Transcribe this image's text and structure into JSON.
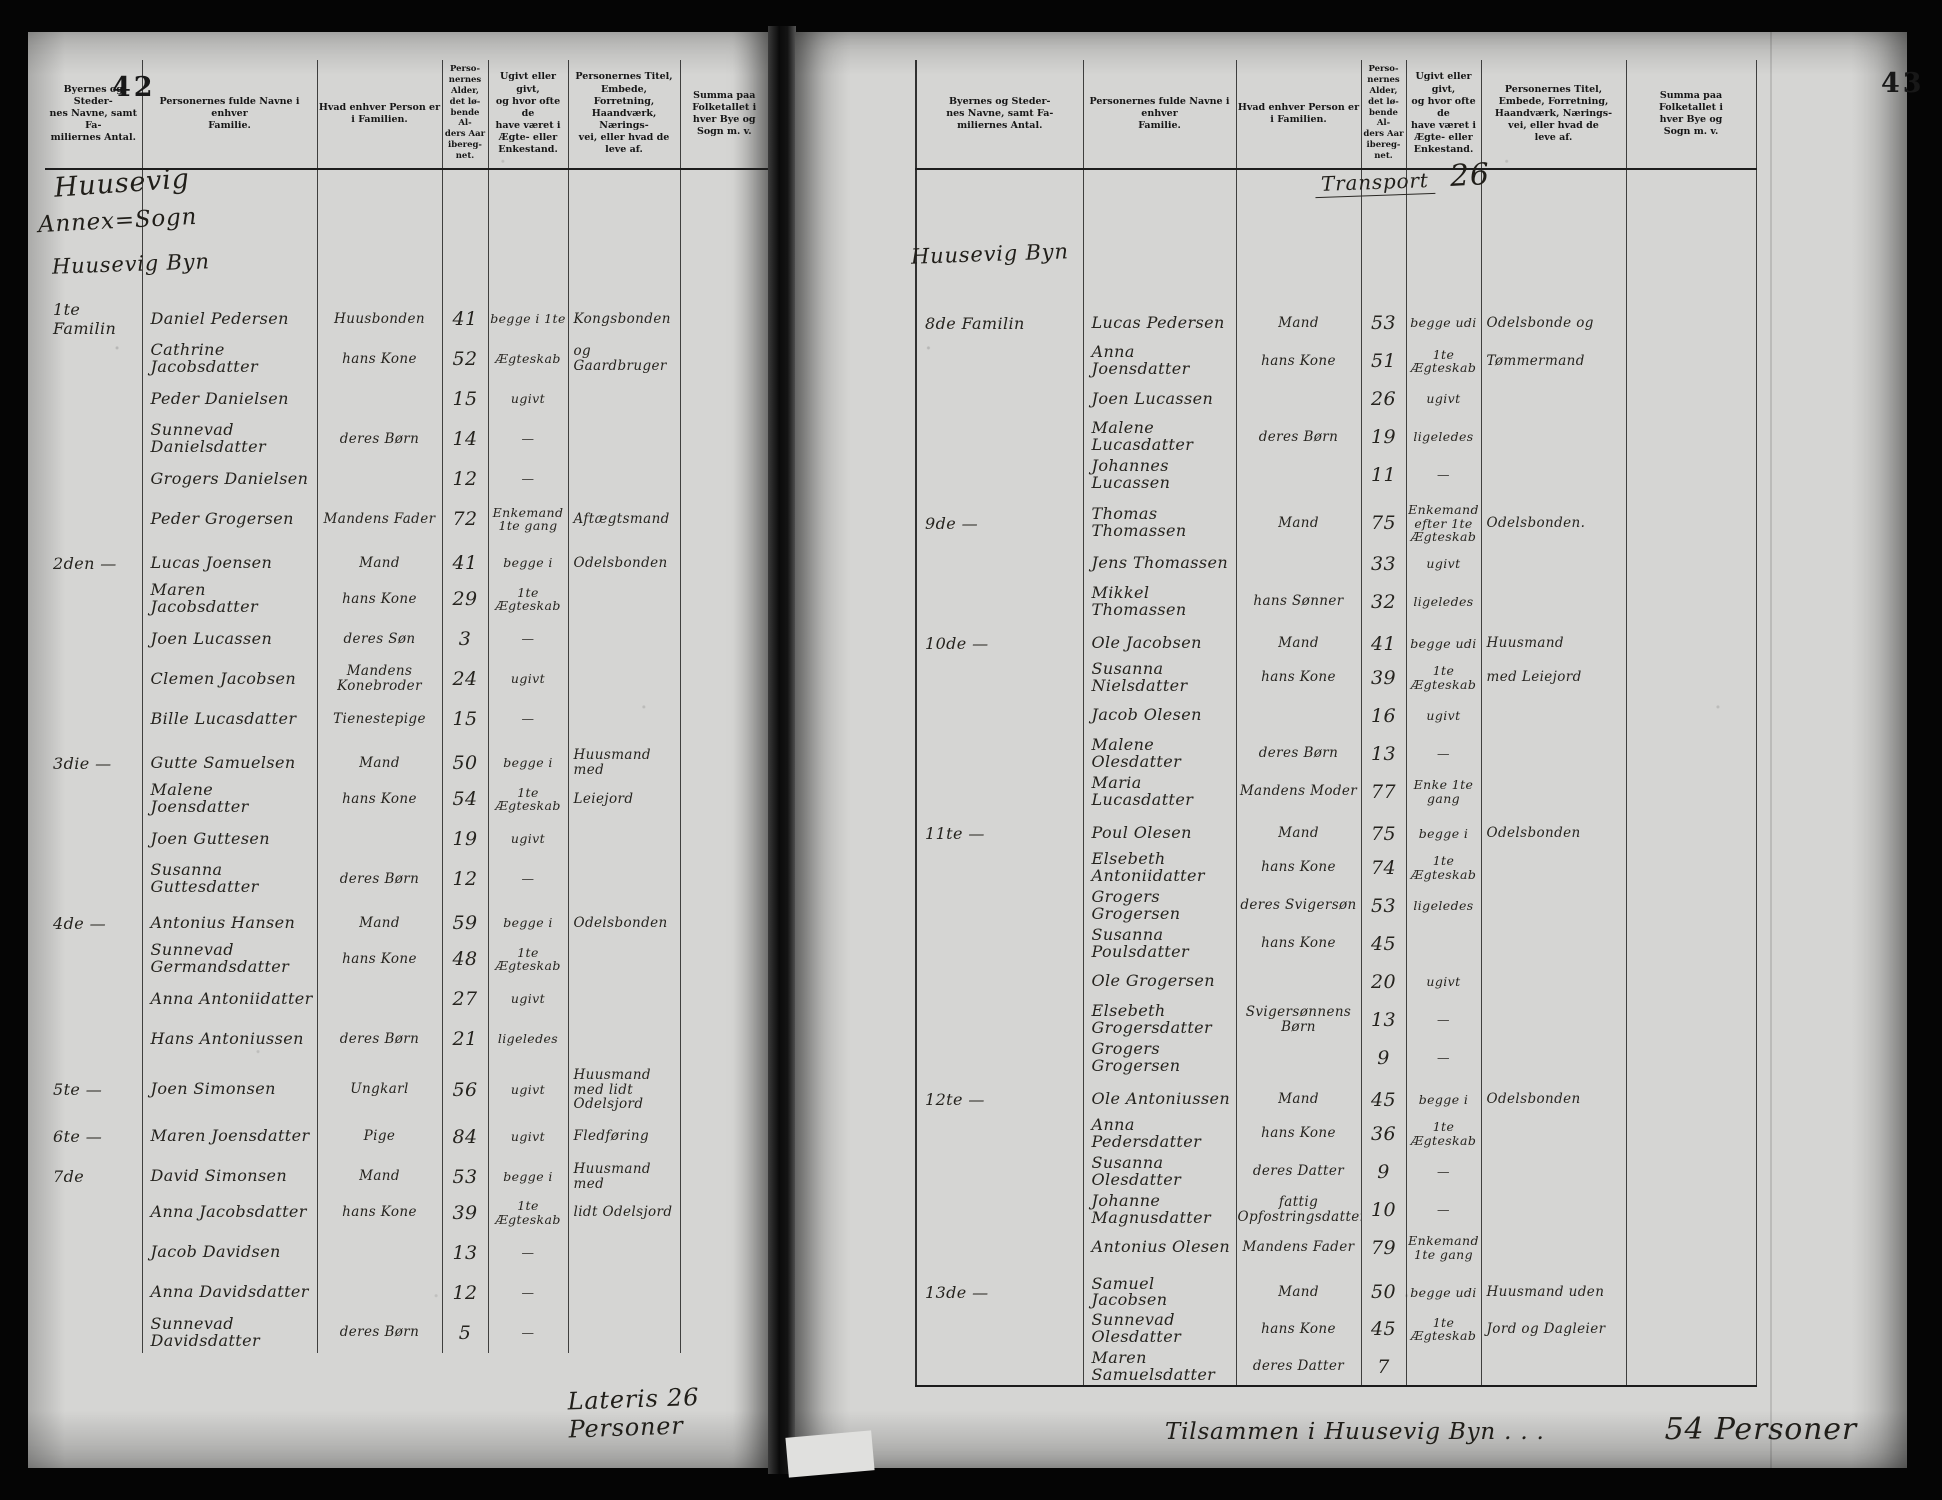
{
  "column_headers": [
    "Byernes og Steder-\nnes Navne, samt Fa-\nmiliernes Antal.",
    "Personernes fulde Navne i enhver\nFamilie.",
    "Hvad enhver Person er\ni Familien.",
    "Perso-\nnernes\nAlder,\ndet lø-\nbende Al-\nders Aar\nibereg-\nnet.",
    "Ugivt eller givt,\nog hvor ofte de\nhave været i\nÆgte- eller\nEnkestand.",
    "Personernes Titel,\nEmbede, Forretning,\nHaandværk, Nærings-\nvei, eller hvad de\nleve af.",
    "Summa paa\nFolketallet i\nhver Bye og\nSogn m. v."
  ],
  "left_page": {
    "page_number": "42",
    "headings": [
      "Huusevig",
      "Annex=Sogn",
      "Huusevig Byn"
    ],
    "footer": "Lateris 26 Personer",
    "rows": [
      {
        "family": "1te Familin",
        "name": "Daniel Pedersen",
        "role": "Huusbonden",
        "age": "41",
        "status": "begge i 1te",
        "occupation": "Kongsbonden"
      },
      {
        "name": "Cathrine Jacobsdatter",
        "role": "hans Kone",
        "age": "52",
        "status": "Ægteskab",
        "occupation": "og Gaardbruger"
      },
      {
        "name": "Peder Danielsen",
        "age": "15",
        "status": "ugivt"
      },
      {
        "name": "Sunnevad Danielsdatter",
        "role": "deres Børn",
        "age": "14",
        "status": "—"
      },
      {
        "name": "Grogers Danielsen",
        "age": "12",
        "status": "—"
      },
      {
        "name": "Peder Grogersen",
        "role": "Mandens Fader",
        "age": "72",
        "status": "Enkemand 1te gang",
        "occupation": "Aftægtsmand"
      },
      {
        "family": "2den  —",
        "name": "Lucas Joensen",
        "role": "Mand",
        "age": "41",
        "status": "begge i",
        "occupation": "Odelsbonden"
      },
      {
        "name": "Maren Jacobsdatter",
        "role": "hans Kone",
        "age": "29",
        "status": "1te Ægteskab"
      },
      {
        "name": "Joen Lucassen",
        "role": "deres Søn",
        "age": "3",
        "status": "—"
      },
      {
        "name": "Clemen Jacobsen",
        "role": "Mandens Konebroder",
        "age": "24",
        "status": "ugivt"
      },
      {
        "name": "Bille Lucasdatter",
        "role": "Tienestepige",
        "age": "15",
        "status": "—"
      },
      {
        "family": "3die  —",
        "name": "Gutte Samuelsen",
        "role": "Mand",
        "age": "50",
        "status": "begge i",
        "occupation": "Huusmand med"
      },
      {
        "name": "Malene Joensdatter",
        "role": "hans Kone",
        "age": "54",
        "status": "1te Ægteskab",
        "occupation": "Leiejord"
      },
      {
        "name": "Joen Guttesen",
        "age": "19",
        "status": "ugivt"
      },
      {
        "name": "Susanna Guttesdatter",
        "role": "deres Børn",
        "age": "12",
        "status": "—"
      },
      {
        "family": "4de  —",
        "name": "Antonius Hansen",
        "role": "Mand",
        "age": "59",
        "status": "begge i",
        "occupation": "Odelsbonden"
      },
      {
        "name": "Sunnevad Germandsdatter",
        "role": "hans Kone",
        "age": "48",
        "status": "1te Ægteskab"
      },
      {
        "name": "Anna Antoniidatter",
        "age": "27",
        "status": "ugivt"
      },
      {
        "name": "Hans Antoniussen",
        "role": "deres Børn",
        "age": "21",
        "status": "ligeledes"
      },
      {
        "family": "5te  —",
        "name": "Joen Simonsen",
        "role": "Ungkarl",
        "age": "56",
        "status": "ugivt",
        "occupation": "Huusmand med lidt Odelsjord"
      },
      {
        "family": "6te  —",
        "name": "Maren Joensdatter",
        "role": "Pige",
        "age": "84",
        "status": "ugivt",
        "occupation": "Fledføring"
      },
      {
        "family": "7de",
        "name": "David Simonsen",
        "role": "Mand",
        "age": "53",
        "status": "begge i",
        "occupation": "Huusmand med"
      },
      {
        "name": "Anna Jacobsdatter",
        "role": "hans Kone",
        "age": "39",
        "status": "1te Ægteskab",
        "occupation": "lidt Odelsjord"
      },
      {
        "name": "Jacob Davidsen",
        "age": "13",
        "status": "—"
      },
      {
        "name": "Anna Davidsdatter",
        "age": "12",
        "status": "—"
      },
      {
        "name": "Sunnevad Davidsdatter",
        "role": "deres Børn",
        "age": "5",
        "status": "—"
      }
    ]
  },
  "right_page": {
    "page_number": "43",
    "heading": "Huusevig Byn",
    "transport_label": "Transport",
    "transport_value": "26",
    "footer_label": "Tilsammen i Huusevig Byn . . .",
    "footer_value": "54 Personer",
    "rows": [
      {
        "family": "8de Familin",
        "name": "Lucas Pedersen",
        "role": "Mand",
        "age": "53",
        "status": "begge udi",
        "occupation": "Odelsbonde og"
      },
      {
        "name": "Anna Joensdatter",
        "role": "hans Kone",
        "age": "51",
        "status": "1te Ægteskab",
        "occupation": "Tømmermand"
      },
      {
        "name": "Joen Lucassen",
        "age": "26",
        "status": "ugivt"
      },
      {
        "name": "Malene Lucasdatter",
        "role": "deres Børn",
        "age": "19",
        "status": "ligeledes"
      },
      {
        "name": "Johannes Lucassen",
        "age": "11",
        "status": "—"
      },
      {
        "family": "9de  —",
        "name": "Thomas Thomassen",
        "role": "Mand",
        "age": "75",
        "status": "Enkemand efter 1te Ægteskab",
        "occupation": "Odelsbonden."
      },
      {
        "name": "Jens Thomassen",
        "age": "33",
        "status": "ugivt"
      },
      {
        "name": "Mikkel Thomassen",
        "role": "hans Sønner",
        "age": "32",
        "status": "ligeledes"
      },
      {
        "family": "10de  —",
        "name": "Ole Jacobsen",
        "role": "Mand",
        "age": "41",
        "status": "begge udi",
        "occupation": "Huusmand"
      },
      {
        "name": "Susanna Nielsdatter",
        "role": "hans Kone",
        "age": "39",
        "status": "1te Ægteskab",
        "occupation": "med Leiejord"
      },
      {
        "name": "Jacob Olesen",
        "age": "16",
        "status": "ugivt"
      },
      {
        "name": "Malene Olesdatter",
        "role": "deres Børn",
        "age": "13",
        "status": "—"
      },
      {
        "name": "Maria Lucasdatter",
        "role": "Mandens Moder",
        "age": "77",
        "status": "Enke 1te gang"
      },
      {
        "family": "11te  —",
        "name": "Poul Olesen",
        "role": "Mand",
        "age": "75",
        "status": "begge i",
        "occupation": "Odelsbonden"
      },
      {
        "name": "Elsebeth Antoniidatter",
        "role": "hans Kone",
        "age": "74",
        "status": "1te Ægteskab"
      },
      {
        "name": "Grogers Grogersen",
        "role": "deres Svigersøn",
        "age": "53",
        "status": "ligeledes"
      },
      {
        "name": "Susanna Poulsdatter",
        "role": "hans Kone",
        "age": "45"
      },
      {
        "name": "Ole Grogersen",
        "age": "20",
        "status": "ugivt"
      },
      {
        "name": "Elsebeth Grogersdatter",
        "role": "Svigersønnens Børn",
        "age": "13",
        "status": "—"
      },
      {
        "name": "Grogers Grogersen",
        "age": "9",
        "status": "—"
      },
      {
        "family": "12te  —",
        "name": "Ole Antoniussen",
        "role": "Mand",
        "age": "45",
        "status": "begge i",
        "occupation": "Odelsbonden"
      },
      {
        "name": "Anna Pedersdatter",
        "role": "hans Kone",
        "age": "36",
        "status": "1te Ægteskab"
      },
      {
        "name": "Susanna Olesdatter",
        "role": "deres Datter",
        "age": "9",
        "status": "—"
      },
      {
        "name": "Johanne Magnusdatter",
        "role": "fattig Opfostringsdatter",
        "age": "10",
        "status": "—"
      },
      {
        "name": "Antonius Olesen",
        "role": "Mandens Fader",
        "age": "79",
        "status": "Enkemand 1te gang"
      },
      {
        "family": "13de  —",
        "name": "Samuel Jacobsen",
        "role": "Mand",
        "age": "50",
        "status": "begge udi",
        "occupation": "Huusmand uden"
      },
      {
        "name": "Sunnevad Olesdatter",
        "role": "hans Kone",
        "age": "45",
        "status": "1te Ægteskab",
        "occupation": "Jord og Dagleier"
      },
      {
        "name": "Maren Samuelsdatter",
        "role": "deres Datter",
        "age": "7"
      }
    ]
  }
}
